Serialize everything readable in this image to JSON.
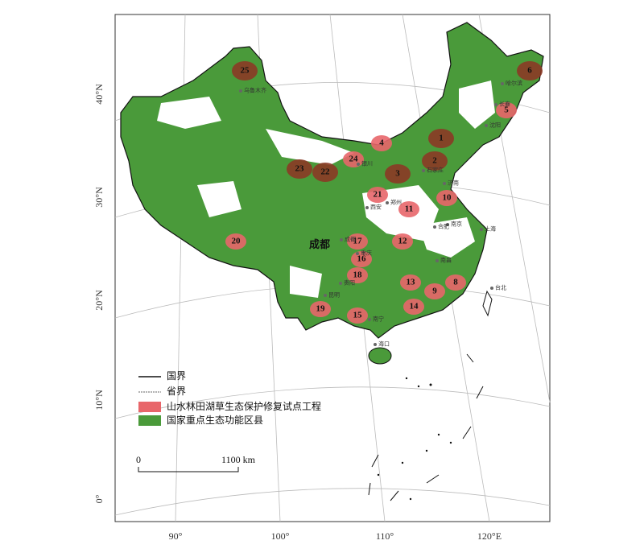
{
  "lat_labels": [
    "40°N",
    "30°N",
    "20°N",
    "10°N",
    "0°"
  ],
  "lon_labels": [
    "90°",
    "100°",
    "110°",
    "120°E"
  ],
  "legend": {
    "items": [
      "国界",
      "省界",
      "山水林田湖草生态保护修复试点工程",
      "国家重点生态功能区县"
    ]
  },
  "scale_bar": {
    "start": "0",
    "end": "1100 km"
  },
  "regions": [
    "1",
    "2",
    "3",
    "4",
    "5",
    "6",
    "8",
    "9",
    "10",
    "11",
    "12",
    "13",
    "14",
    "15",
    "16",
    "17",
    "18",
    "19",
    "20",
    "21",
    "22",
    "23",
    "24",
    "25"
  ],
  "big_label": "成都",
  "cities": [
    "乌鲁木齐",
    "银川",
    "石家庄",
    "郑州",
    "西安",
    "成都",
    "重庆",
    "贵阳",
    "昆明",
    "南宁",
    "海口",
    "南京",
    "上海",
    "合肥",
    "南昌",
    "台北",
    "沈阳",
    "长春",
    "哈尔滨",
    "济南"
  ]
}
